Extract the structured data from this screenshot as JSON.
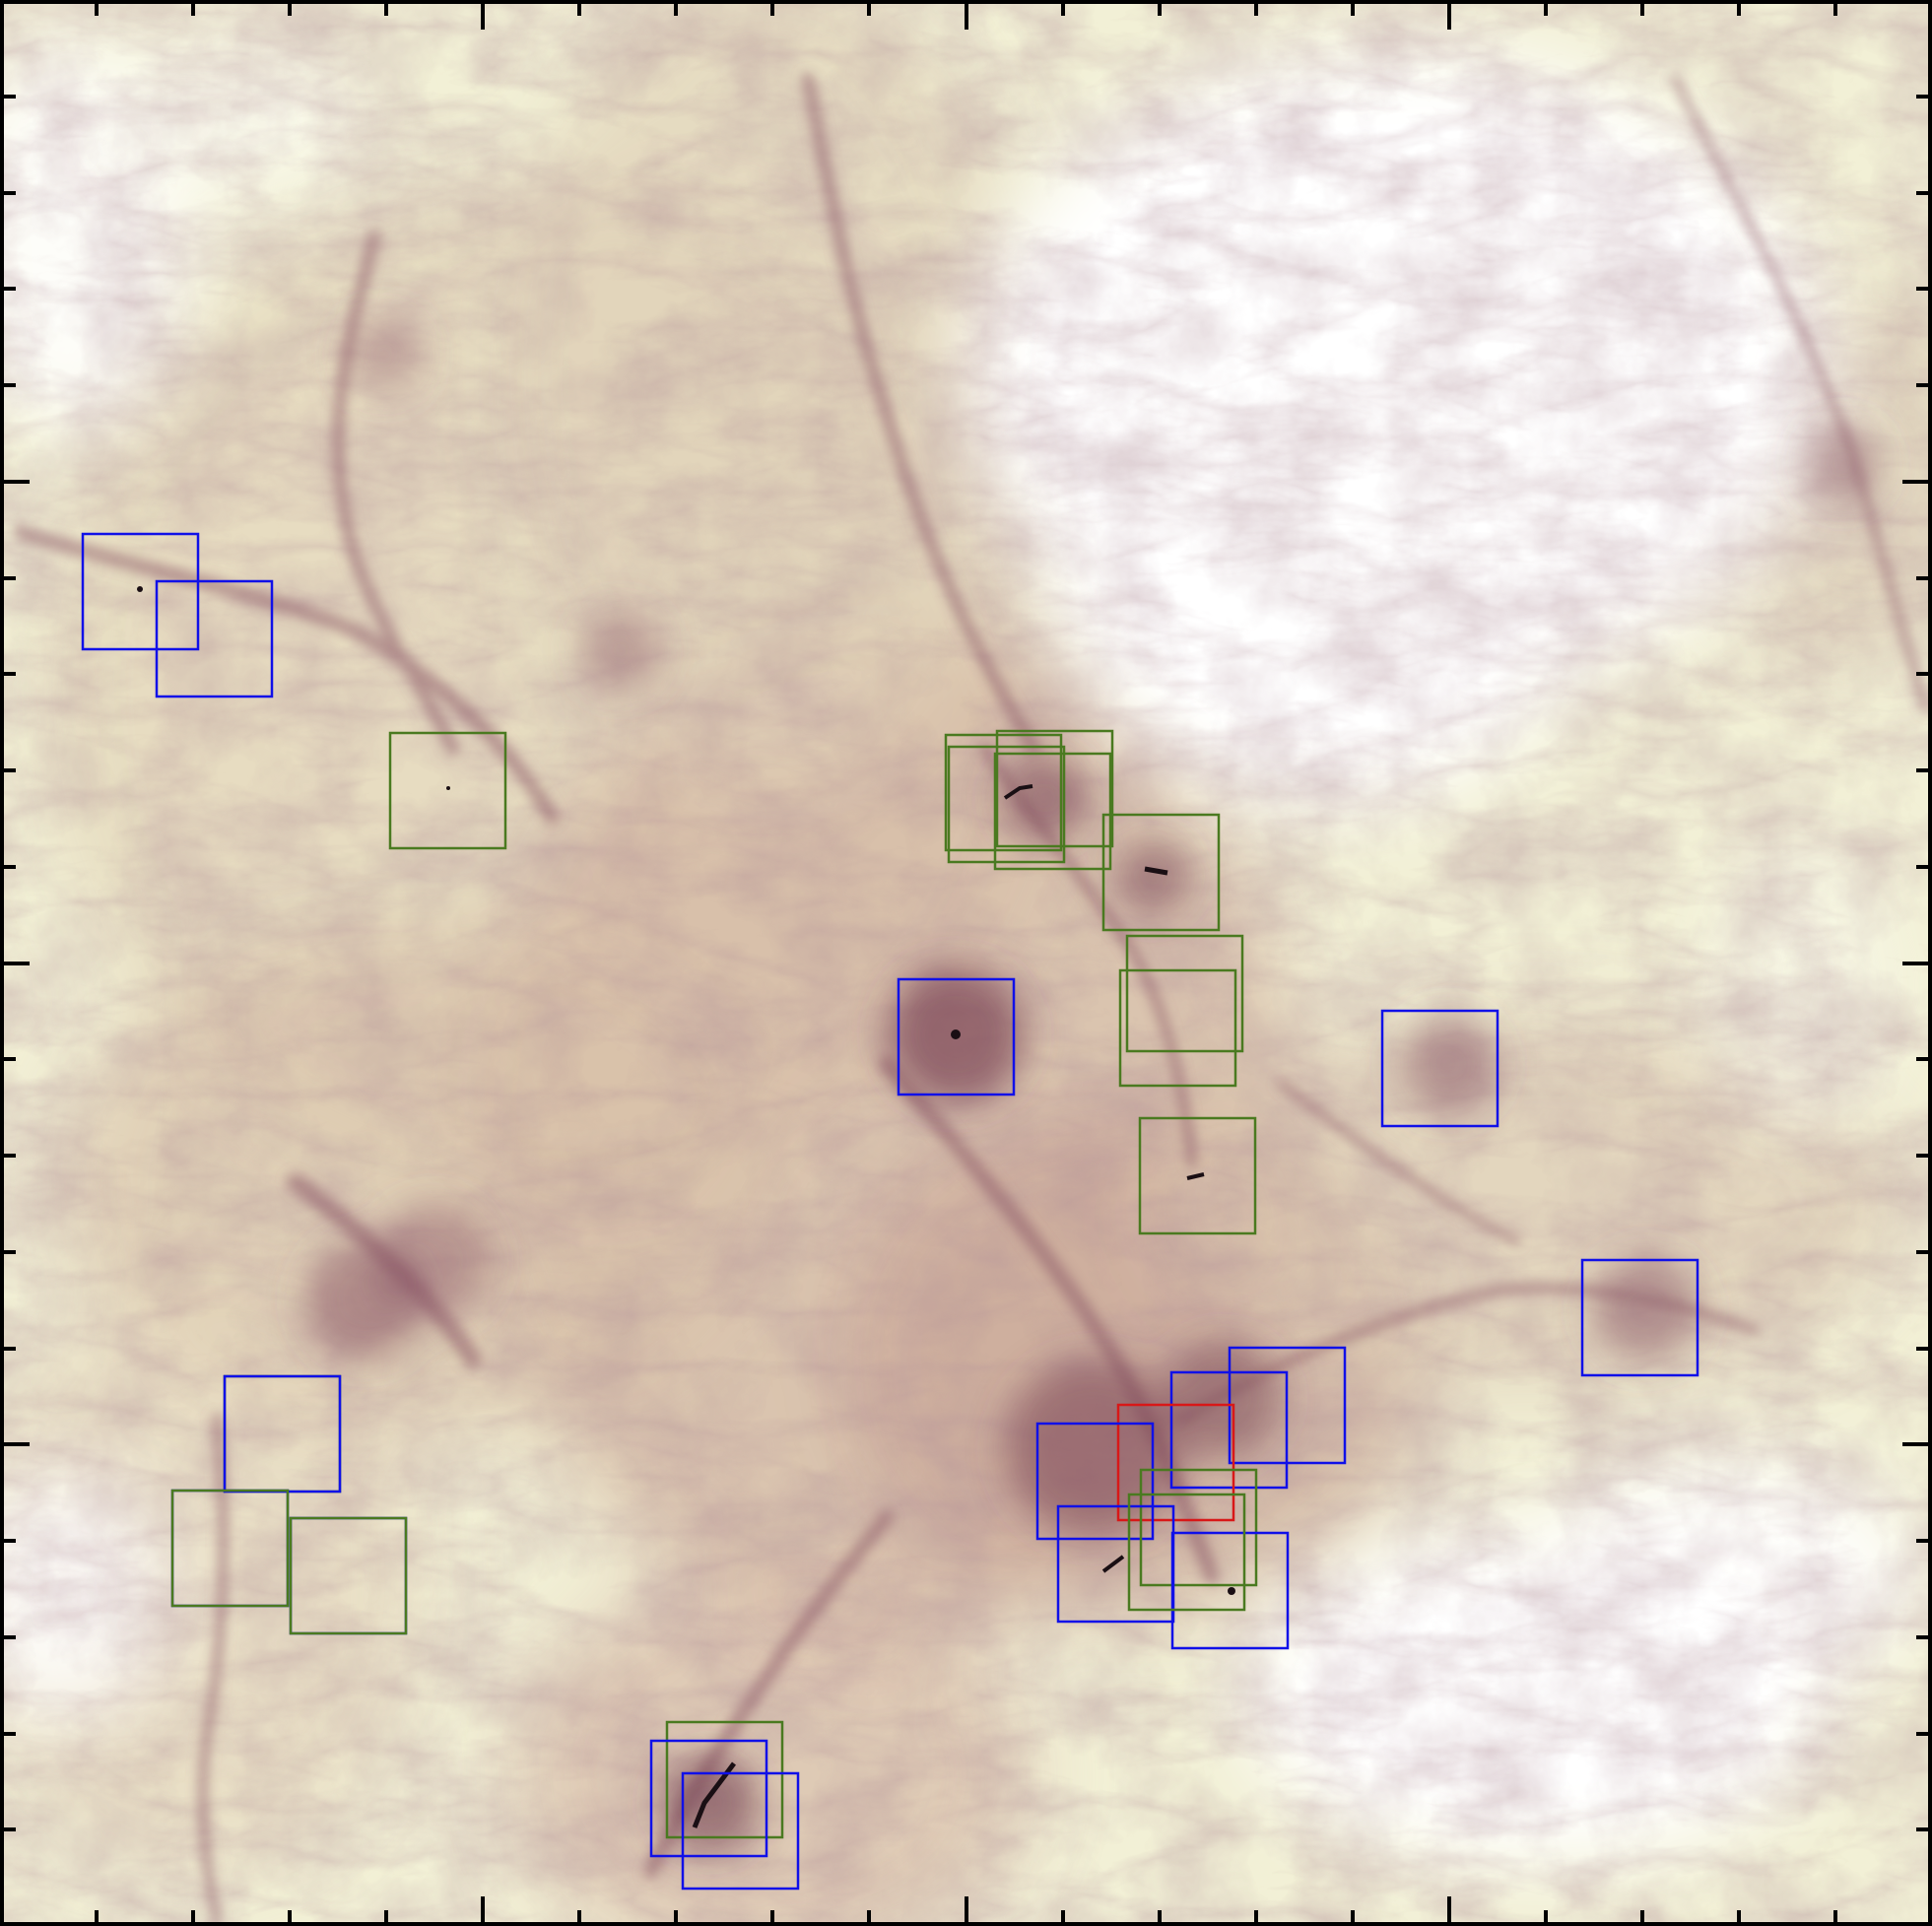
{
  "image": {
    "kind": "column-density-map",
    "colormap": [
      "#ffffff",
      "#f4f4e0",
      "#e6e0c2",
      "#cdb79f",
      "#a57d7f",
      "#6f4254",
      "#1a0f14"
    ],
    "frame_color": "#000000",
    "tick_count_per_side": 19,
    "major_tick_every": 5
  },
  "box_colors": {
    "blue": "#1010e8",
    "green": "#4a7a20",
    "red": "#d81818"
  },
  "boxes": [
    {
      "id": "b1",
      "color": "blue"
    },
    {
      "id": "b2",
      "color": "blue"
    },
    {
      "id": "g1",
      "color": "green"
    },
    {
      "id": "g2",
      "color": "green"
    },
    {
      "id": "g3",
      "color": "green"
    },
    {
      "id": "g4",
      "color": "green"
    },
    {
      "id": "g5",
      "color": "green"
    },
    {
      "id": "b3",
      "color": "blue"
    },
    {
      "id": "g6",
      "color": "green"
    },
    {
      "id": "g7",
      "color": "green"
    },
    {
      "id": "b4",
      "color": "blue"
    },
    {
      "id": "g8",
      "color": "green"
    },
    {
      "id": "b5",
      "color": "blue"
    },
    {
      "id": "b6",
      "color": "blue"
    },
    {
      "id": "b7",
      "color": "blue"
    },
    {
      "id": "r1",
      "color": "red"
    },
    {
      "id": "b8",
      "color": "blue"
    },
    {
      "id": "g9",
      "color": "green"
    },
    {
      "id": "g10",
      "color": "green"
    },
    {
      "id": "b9",
      "color": "blue"
    },
    {
      "id": "b10",
      "color": "blue"
    },
    {
      "id": "b11",
      "color": "blue"
    },
    {
      "id": "g11",
      "color": "green"
    },
    {
      "id": "g12",
      "color": "green"
    },
    {
      "id": "b12",
      "color": "blue"
    },
    {
      "id": "g13",
      "color": "green"
    },
    {
      "id": "b13",
      "color": "blue"
    }
  ]
}
